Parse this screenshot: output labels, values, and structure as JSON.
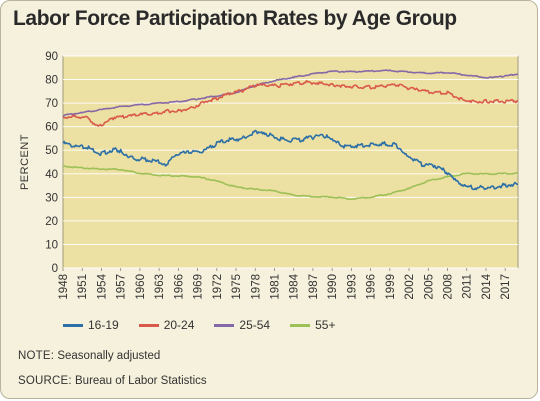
{
  "chart_data": {
    "type": "line",
    "title": "Labor Force Participation Rates by Age Group",
    "ylabel": "PERCENT",
    "xlabel": "",
    "ylim": [
      0,
      90
    ],
    "yticks": [
      "0",
      "10",
      "20",
      "30",
      "40",
      "50",
      "60",
      "70",
      "80",
      "90"
    ],
    "xlim": [
      1948,
      2019
    ],
    "xticks": [
      "1948",
      "1951",
      "1954",
      "1957",
      "1960",
      "1963",
      "1966",
      "1969",
      "1972",
      "1975",
      "1978",
      "1981",
      "1984",
      "1987",
      "1990",
      "1993",
      "1996",
      "1999",
      "2002",
      "2005",
      "2008",
      "2011",
      "2014",
      "2017"
    ],
    "grid": true,
    "legend_position": "bottom-left",
    "plot_background": "#ede0a3",
    "series": [
      {
        "name": "16-19",
        "color": "#2c6fa6",
        "x": [
          1948,
          1950,
          1952,
          1954,
          1956,
          1957,
          1959,
          1961,
          1963,
          1964,
          1966,
          1968,
          1970,
          1972,
          1974,
          1976,
          1978,
          1979,
          1981,
          1983,
          1985,
          1987,
          1989,
          1990,
          1992,
          1994,
          1996,
          1998,
          2000,
          2001,
          2002,
          2004,
          2006,
          2008,
          2009,
          2010,
          2011,
          2013,
          2015,
          2017,
          2019
        ],
        "y": [
          53,
          51.5,
          51,
          48.5,
          50.5,
          49.5,
          46.5,
          46,
          45,
          44,
          48.5,
          49,
          49.5,
          53,
          54.5,
          55,
          57.5,
          58,
          55.5,
          54,
          54.5,
          55.5,
          56,
          54,
          51.5,
          52,
          52.5,
          52.8,
          52.2,
          50,
          47.5,
          43.8,
          43.5,
          40.5,
          37.5,
          35,
          34.3,
          34.2,
          34.3,
          35.2,
          35.5
        ]
      },
      {
        "name": "20-24",
        "color": "#d95a4a",
        "x": [
          1948,
          1950,
          1952,
          1953,
          1954,
          1956,
          1958,
          1960,
          1962,
          1964,
          1966,
          1968,
          1970,
          1972,
          1974,
          1976,
          1978,
          1980,
          1982,
          1984,
          1986,
          1988,
          1990,
          1992,
          1994,
          1996,
          1998,
          2000,
          2002,
          2004,
          2006,
          2008,
          2010,
          2012,
          2014,
          2016,
          2019
        ],
        "y": [
          64,
          64.5,
          63.5,
          61,
          60.5,
          64,
          64.3,
          65,
          65.5,
          66.5,
          66.8,
          67.8,
          70.5,
          72,
          74,
          75.3,
          77.6,
          77.5,
          77.4,
          78.4,
          78.8,
          78.6,
          77.8,
          77.3,
          76.9,
          76.8,
          77.2,
          77.8,
          76.3,
          75.2,
          74.6,
          74.4,
          71.8,
          70.8,
          70.8,
          70.8,
          70.9
        ]
      },
      {
        "name": "25-54",
        "color": "#8568a8",
        "x": [
          1948,
          1951,
          1954,
          1957,
          1960,
          1963,
          1966,
          1969,
          1972,
          1975,
          1978,
          1981,
          1984,
          1987,
          1990,
          1993,
          1996,
          1999,
          2002,
          2005,
          2008,
          2011,
          2014,
          2015,
          2017,
          2019
        ],
        "y": [
          64.8,
          66,
          67.2,
          68.5,
          69.3,
          70,
          70.6,
          71.8,
          73,
          74.5,
          77.5,
          79.5,
          81,
          82.4,
          83.5,
          83.3,
          83.6,
          83.8,
          83.2,
          82.7,
          83,
          81.8,
          80.9,
          80.8,
          81.5,
          82.3
        ]
      },
      {
        "name": "55+",
        "color": "#9dc057",
        "x": [
          1948,
          1951,
          1954,
          1957,
          1960,
          1963,
          1966,
          1969,
          1972,
          1975,
          1978,
          1981,
          1984,
          1987,
          1990,
          1993,
          1996,
          1999,
          2002,
          2005,
          2008,
          2011,
          2014,
          2017,
          2019
        ],
        "y": [
          43.2,
          42.5,
          42,
          41.8,
          40.2,
          39.3,
          39.1,
          38.7,
          36.9,
          34.4,
          33.4,
          32.7,
          30.9,
          30.3,
          30.1,
          29.3,
          30.1,
          31.5,
          33.8,
          37,
          38.7,
          40.1,
          39.9,
          40.1,
          40.2
        ]
      }
    ]
  },
  "note": {
    "label": "NOTE:",
    "text": "Seasonally adjusted"
  },
  "source": {
    "label": "SOURCE:",
    "text": "Bureau of Labor Statistics"
  }
}
